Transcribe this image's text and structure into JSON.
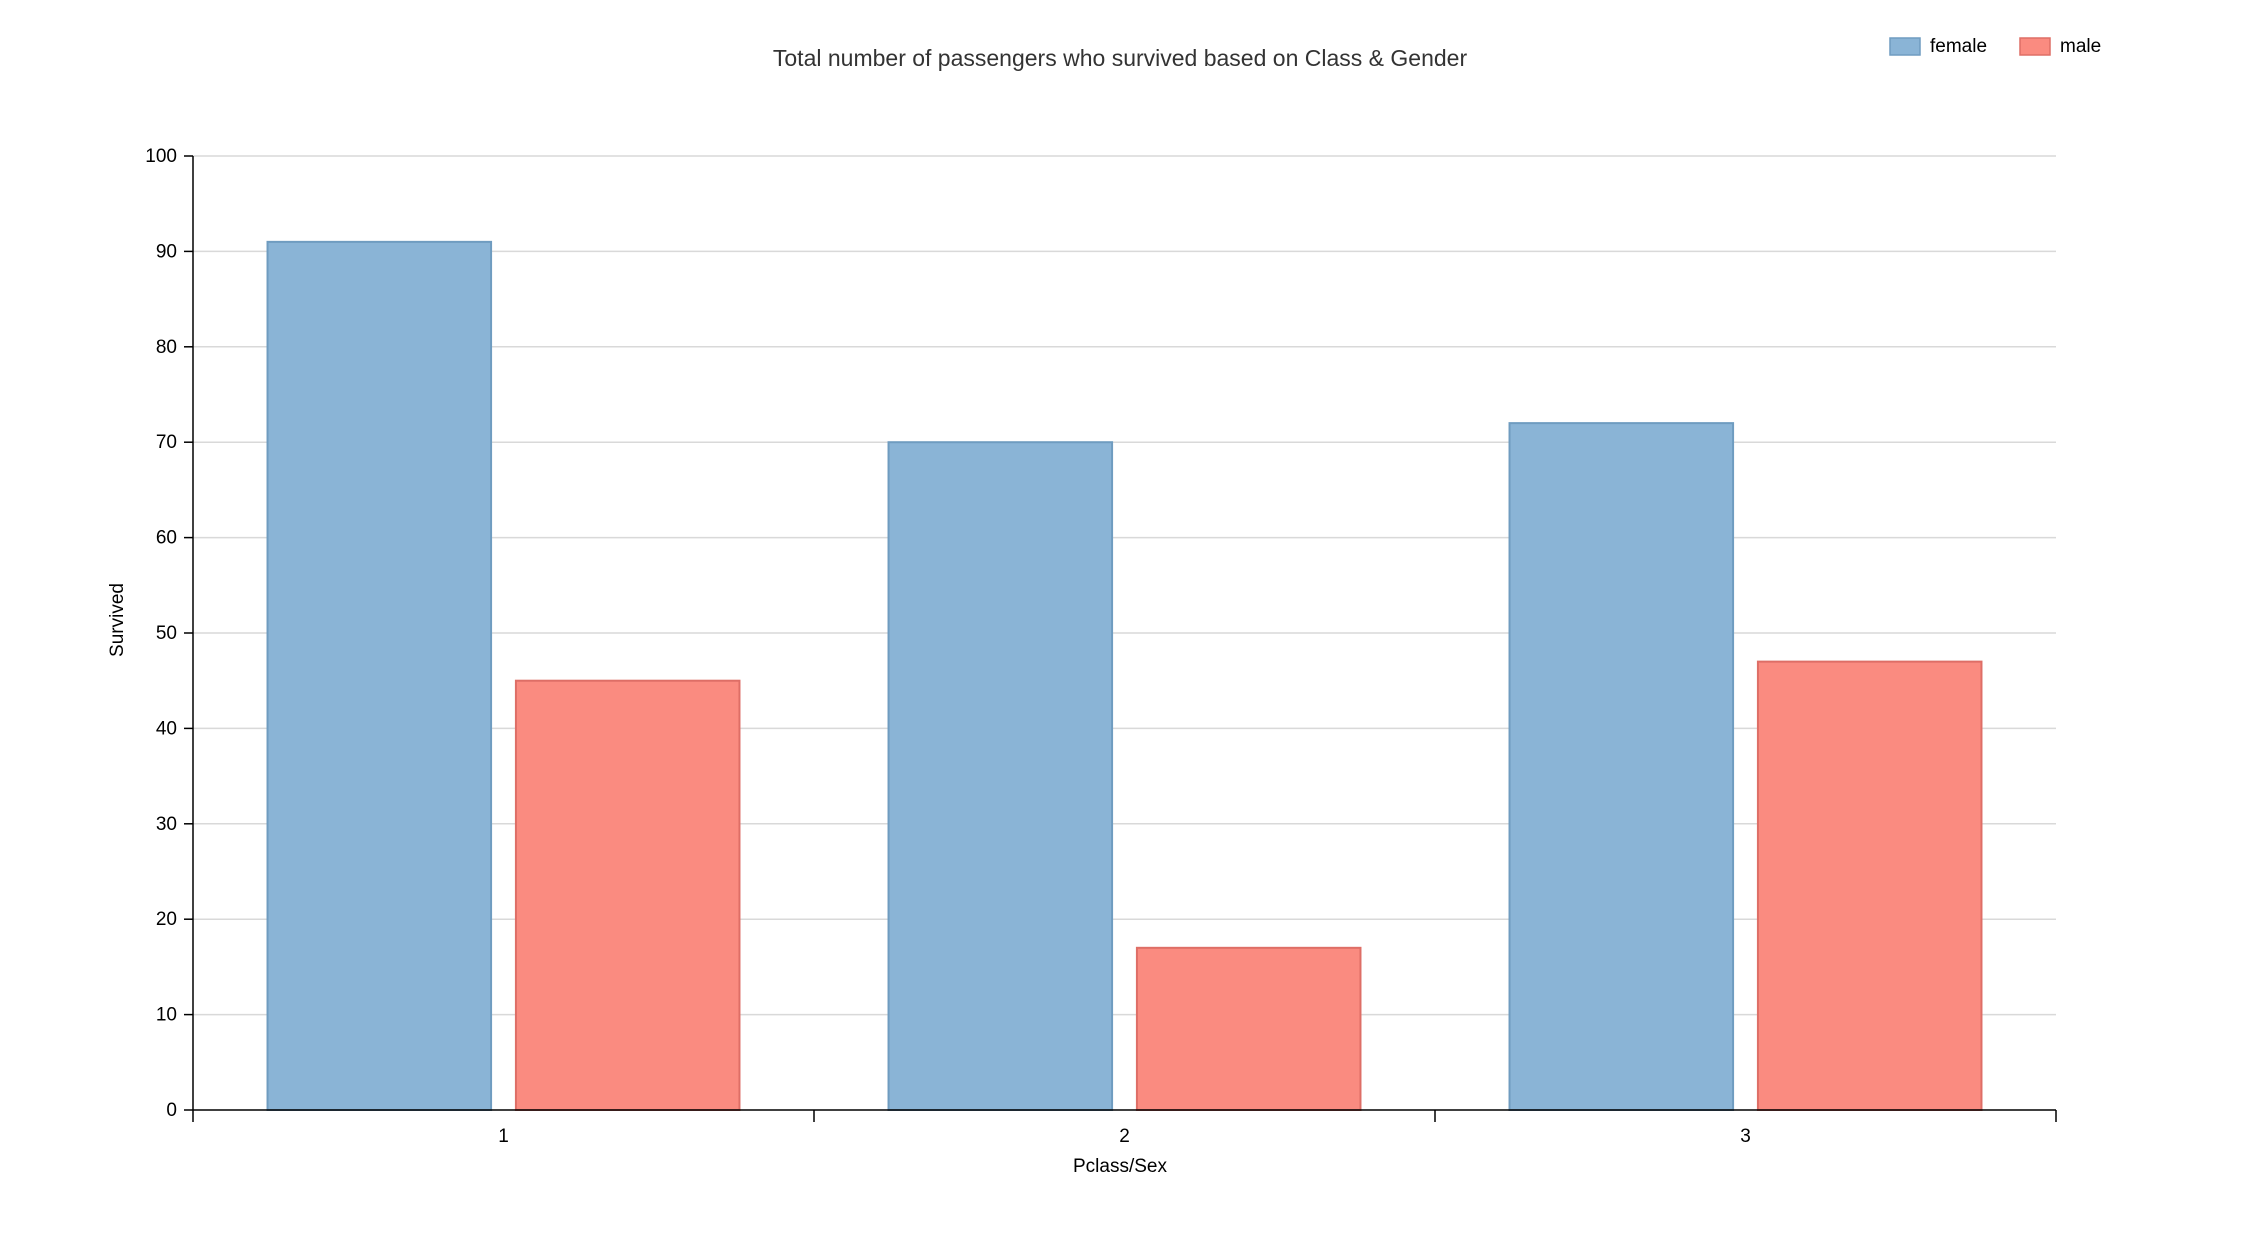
{
  "chart_data": {
    "type": "bar",
    "title": "Total number of passengers who survived based on Class & Gender",
    "xlabel": "Pclass/Sex",
    "ylabel": "Survived",
    "categories": [
      "1",
      "2",
      "3"
    ],
    "series": [
      {
        "name": "female",
        "values": [
          91,
          70,
          72
        ],
        "color": "#8ab4d6",
        "stroke": "#6f9cc0"
      },
      {
        "name": "male",
        "values": [
          45,
          17,
          47
        ],
        "color": "#fa8b80",
        "stroke": "#de6e66"
      }
    ],
    "ylim": [
      0,
      100
    ],
    "yticks": [
      "0",
      "10",
      "20",
      "30",
      "40",
      "50",
      "60",
      "70",
      "80",
      "90",
      "100"
    ],
    "grid": true,
    "legend_position": "top-right"
  }
}
